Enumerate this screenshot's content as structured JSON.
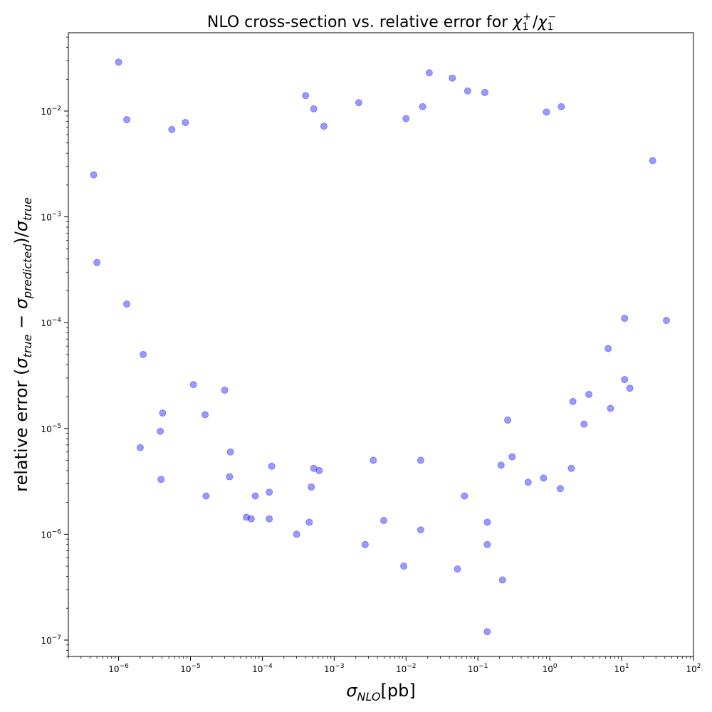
{
  "chart_data": {
    "type": "scatter",
    "title": "NLO cross-section vs. relative error for χ₁⁺/χ₁⁻",
    "title_parts": {
      "prefix": "NLO cross-section vs. relative error for ",
      "chi": "χ",
      "sub": "1",
      "sup_plus": "+",
      "slash": "/",
      "sup_minus": "−"
    },
    "xlabel": "σNLO[pb]",
    "xlabel_parts": {
      "sigma": "σ",
      "sub": "NLO",
      "rest": "[pb]"
    },
    "ylabel": "relative error (σtrue − σpredicted)/σtrue",
    "ylabel_parts": {
      "pre": "relative error (",
      "sigma": "σ",
      "sub_true": "true",
      "minus": " − ",
      "sub_pred": "predicted",
      "post": ")/",
      "sub_true2": "true"
    },
    "x_scale": "log",
    "y_scale": "log",
    "xlim": [
      2e-07,
      100
    ],
    "ylim": [
      7e-08,
      0.055
    ],
    "x_ticks": [
      {
        "base": "10",
        "exp": "−6",
        "value": 1e-06
      },
      {
        "base": "10",
        "exp": "−5",
        "value": 1e-05
      },
      {
        "base": "10",
        "exp": "−4",
        "value": 0.0001
      },
      {
        "base": "10",
        "exp": "−3",
        "value": 0.001
      },
      {
        "base": "10",
        "exp": "−2",
        "value": 0.01
      },
      {
        "base": "10",
        "exp": "−1",
        "value": 0.1
      },
      {
        "base": "10",
        "exp": "0",
        "value": 1
      },
      {
        "base": "10",
        "exp": "1",
        "value": 10
      },
      {
        "base": "10",
        "exp": "2",
        "value": 100
      }
    ],
    "y_ticks": [
      {
        "base": "10",
        "exp": "−7",
        "value": 1e-07
      },
      {
        "base": "10",
        "exp": "−6",
        "value": 1e-06
      },
      {
        "base": "10",
        "exp": "−5",
        "value": 1e-05
      },
      {
        "base": "10",
        "exp": "−4",
        "value": 0.0001
      },
      {
        "base": "10",
        "exp": "−3",
        "value": 0.001
      },
      {
        "base": "10",
        "exp": "−2",
        "value": 0.01
      }
    ],
    "grid": false,
    "marker_color": "#0000ff",
    "marker_alpha": 0.4,
    "series": [
      {
        "points": [
          [
            1e-06,
            0.029
          ],
          [
            4.5e-07,
            0.0025
          ],
          [
            5e-07,
            0.00037
          ],
          [
            1.3e-06,
            0.0083
          ],
          [
            1.3e-06,
            0.00015
          ],
          [
            2e-06,
            6.6e-06
          ],
          [
            2.2e-06,
            5e-05
          ],
          [
            3.8e-06,
            9.4e-06
          ],
          [
            3.9e-06,
            3.3e-06
          ],
          [
            4.1e-06,
            1.4e-05
          ],
          [
            5.5e-06,
            0.0067
          ],
          [
            8.5e-06,
            0.0078
          ],
          [
            1.6e-05,
            1.35e-05
          ],
          [
            1.65e-05,
            2.3e-06
          ],
          [
            1.1e-05,
            2.6e-05
          ],
          [
            3.5e-05,
            3.5e-06
          ],
          [
            3.6e-05,
            6e-06
          ],
          [
            3e-05,
            2.3e-05
          ],
          [
            6e-05,
            1.45e-06
          ],
          [
            7e-05,
            1.4e-06
          ],
          [
            8e-05,
            2.3e-06
          ],
          [
            0.000125,
            1.4e-06
          ],
          [
            0.000125,
            2.5e-06
          ],
          [
            0.000135,
            4.4e-06
          ],
          [
            0.0003,
            1e-06
          ],
          [
            0.00045,
            1.3e-06
          ],
          [
            0.00048,
            2.8e-06
          ],
          [
            0.00052,
            4.2e-06
          ],
          [
            0.00062,
            4e-06
          ],
          [
            0.0004,
            0.014
          ],
          [
            0.00052,
            0.0105
          ],
          [
            0.00072,
            0.0072
          ],
          [
            0.0022,
            0.012
          ],
          [
            0.0027,
            8e-07
          ],
          [
            0.0049,
            1.35e-06
          ],
          [
            0.0093,
            5e-07
          ],
          [
            0.016,
            1.1e-06
          ],
          [
            0.052,
            4.7e-07
          ],
          [
            0.065,
            2.3e-06
          ],
          [
            0.135,
            1.2e-07
          ],
          [
            0.135,
            8e-07
          ],
          [
            0.135,
            1.3e-06
          ],
          [
            0.22,
            3.7e-07
          ],
          [
            0.21,
            4.5e-06
          ],
          [
            0.3,
            5.4e-06
          ],
          [
            0.5,
            3.1e-06
          ],
          [
            0.82,
            3.4e-06
          ],
          [
            1.4,
            2.7e-06
          ],
          [
            2,
            4.2e-06
          ],
          [
            7,
            1.55e-05
          ],
          [
            11,
            2.9e-05
          ],
          [
            13,
            2.4e-05
          ],
          [
            27,
            0.0034
          ],
          [
            42,
            0.000105
          ],
          [
            0.021,
            0.023
          ],
          [
            0.044,
            0.0205
          ],
          [
            0.072,
            0.0155
          ],
          [
            0.125,
            0.015
          ],
          [
            0.017,
            0.011
          ],
          [
            1.45,
            0.011
          ],
          [
            0.9,
            0.0098
          ],
          [
            0.01,
            0.0085
          ],
          [
            3,
            1.1e-05
          ],
          [
            2.1,
            1.8e-05
          ],
          [
            0.26,
            1.2e-05
          ],
          [
            6.5,
            5.7e-05
          ],
          [
            11,
            0.00011
          ],
          [
            3.5,
            2.1e-05
          ],
          [
            0.016,
            5e-06
          ],
          [
            0.0035,
            5e-06
          ]
        ]
      }
    ]
  }
}
